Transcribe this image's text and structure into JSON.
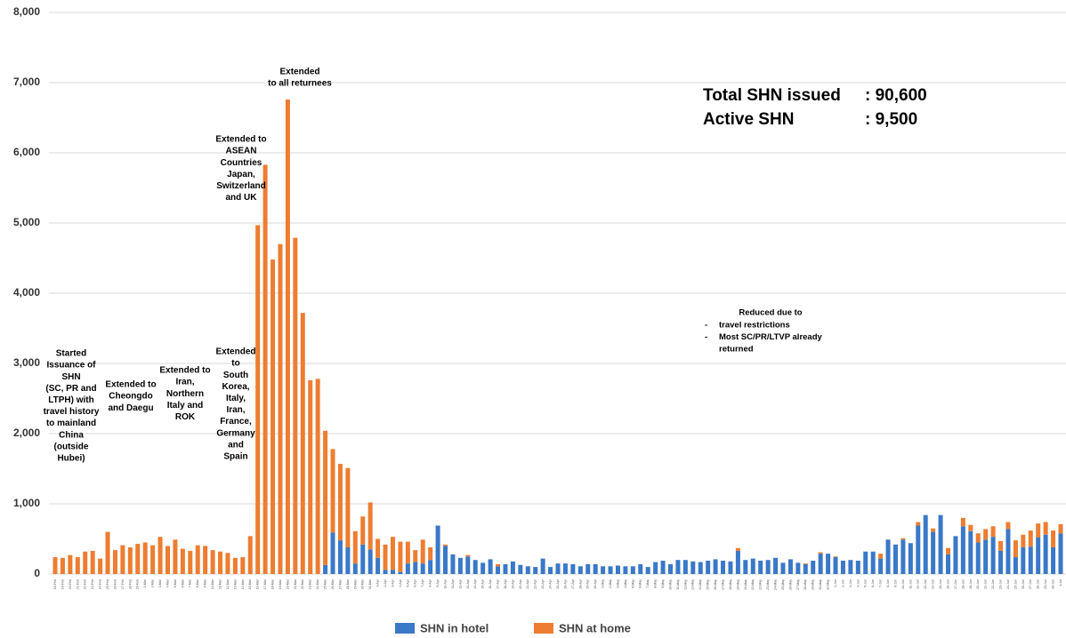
{
  "chart_data": {
    "type": "stacked_bar",
    "categories": [
      "18-Feb",
      "19-Feb",
      "20-Feb",
      "21-Feb",
      "22-Feb",
      "23-Feb",
      "24-Feb",
      "25-Feb",
      "26-Feb",
      "27-Feb",
      "28-Feb",
      "29-Feb",
      "1-Mar",
      "2-Mar",
      "3-Mar",
      "4-Mar",
      "5-Mar",
      "6-Mar",
      "7-Mar",
      "8-Mar",
      "9-Mar",
      "10-Mar",
      "11-Mar",
      "12-Mar",
      "13-Mar",
      "14-Mar",
      "15-Mar",
      "16-Mar",
      "17-Mar",
      "18-Mar",
      "19-Mar",
      "20-Mar",
      "21-Mar",
      "22-Mar",
      "23-Mar",
      "24-Mar",
      "25-Mar",
      "26-Mar",
      "27-Mar",
      "28-Mar",
      "29-Mar",
      "30-Mar",
      "31-Mar",
      "1-Apr",
      "2-Apr",
      "3-Apr",
      "4-Apr",
      "5-Apr",
      "6-Apr",
      "7-Apr",
      "8-Apr",
      "9-Apr",
      "10-Apr",
      "11-Apr",
      "12-Apr",
      "13-Apr",
      "14-Apr",
      "15-Apr",
      "16-Apr",
      "17-Apr",
      "18-Apr",
      "19-Apr",
      "20-Apr",
      "21-Apr",
      "22-Apr",
      "23-Apr",
      "24-Apr",
      "25-Apr",
      "26-Apr",
      "27-Apr",
      "28-Apr",
      "29-Apr",
      "30-Apr",
      "1-May",
      "2-May",
      "3-May",
      "4-May",
      "5-May",
      "6-May",
      "7-May",
      "8-May",
      "9-May",
      "10-May",
      "11-May",
      "12-May",
      "13-May",
      "14-May",
      "15-May",
      "16-May",
      "17-May",
      "18-May",
      "19-May",
      "20-May",
      "21-May",
      "22-May",
      "23-May",
      "24-May",
      "25-May",
      "26-May",
      "27-May",
      "28-May",
      "29-May",
      "30-May",
      "31-May",
      "1-Jun",
      "2-Jun",
      "3-Jun",
      "4-Jun",
      "5-Jun",
      "6-Jun",
      "7-Jun",
      "8-Jun",
      "9-Jun",
      "10-Jun",
      "11-Jun",
      "12-Jun",
      "13-Jun",
      "14-Jun",
      "15-Jun",
      "16-Jun",
      "17-Jun",
      "18-Jun",
      "19-Jun",
      "20-Jun",
      "21-Jun",
      "22-Jun",
      "23-Jun",
      "24-Jun",
      "25-Jun",
      "26-Jun",
      "27-Jun",
      "28-Jun",
      "29-Jun",
      "30-Jun",
      "1-Jul"
    ],
    "series": [
      {
        "name": "SHN in hotel",
        "color": "#3a78c8",
        "values": [
          0,
          0,
          0,
          0,
          0,
          0,
          0,
          0,
          0,
          0,
          0,
          0,
          0,
          0,
          0,
          0,
          0,
          0,
          0,
          0,
          0,
          0,
          0,
          0,
          0,
          0,
          0,
          0,
          0,
          0,
          0,
          0,
          0,
          0,
          0,
          0,
          130,
          590,
          480,
          380,
          150,
          420,
          350,
          230,
          60,
          60,
          30,
          150,
          170,
          150,
          200,
          690,
          400,
          280,
          230,
          250,
          200,
          160,
          210,
          110,
          140,
          180,
          130,
          110,
          100,
          220,
          100,
          150,
          150,
          140,
          110,
          140,
          140,
          110,
          110,
          120,
          110,
          110,
          140,
          100,
          170,
          190,
          140,
          200,
          200,
          180,
          170,
          190,
          210,
          190,
          180,
          330,
          200,
          220,
          190,
          200,
          230,
          160,
          210,
          160,
          140,
          190,
          290,
          290,
          240,
          190,
          200,
          190,
          320,
          320,
          220,
          490,
          420,
          490,
          440,
          690,
          840,
          600,
          840,
          280,
          540,
          680,
          610,
          450,
          490,
          530,
          330,
          640,
          240,
          380,
          390,
          520,
          560,
          380,
          580
        ]
      },
      {
        "name": "SHN at home",
        "color": "#ed7d31",
        "values": [
          240,
          230,
          270,
          240,
          320,
          330,
          220,
          600,
          340,
          410,
          380,
          430,
          450,
          410,
          530,
          400,
          490,
          360,
          330,
          410,
          400,
          340,
          320,
          300,
          230,
          240,
          540,
          4970,
          5830,
          4480,
          4700,
          6760,
          4790,
          3720,
          2760,
          2780,
          1910,
          1190,
          1090,
          1130,
          460,
          400,
          670,
          270,
          360,
          470,
          430,
          310,
          170,
          340,
          180,
          0,
          20,
          0,
          0,
          20,
          0,
          0,
          0,
          30,
          0,
          0,
          0,
          0,
          0,
          0,
          0,
          0,
          0,
          0,
          0,
          0,
          0,
          0,
          0,
          0,
          0,
          0,
          0,
          0,
          0,
          0,
          0,
          0,
          0,
          0,
          0,
          0,
          0,
          0,
          0,
          40,
          0,
          0,
          0,
          0,
          0,
          0,
          0,
          0,
          10,
          0,
          20,
          0,
          10,
          0,
          0,
          0,
          0,
          0,
          70,
          0,
          0,
          20,
          0,
          50,
          0,
          50,
          0,
          90,
          0,
          120,
          90,
          130,
          150,
          150,
          140,
          100,
          240,
          180,
          230,
          200,
          180,
          240,
          130
        ]
      }
    ],
    "ylim": [
      0,
      8000
    ],
    "yticks": [
      0,
      {
        "value": 1000,
        "label": "1,000"
      },
      {
        "value": 2000,
        "label": "2,000"
      },
      {
        "value": 3000,
        "label": "3,000"
      },
      {
        "value": 4000,
        "label": "4,000"
      },
      {
        "value": 5000,
        "label": "5,000"
      },
      {
        "value": 6000,
        "label": "6,000"
      },
      {
        "value": 7000,
        "label": "7,000"
      },
      {
        "value": 8000,
        "label": "8,000"
      }
    ],
    "grid": true,
    "annotations": [
      {
        "lines": [
          "Started",
          "Issuance of",
          "SHN",
          "(SC, PR and",
          "LTPH) with",
          "travel history",
          "to mainland",
          "China",
          "(outside",
          "Hubei)"
        ]
      },
      {
        "lines": [
          "Extended to",
          "Cheongdo",
          "and Daegu"
        ]
      },
      {
        "lines": [
          "Extended to",
          "Iran,",
          "Northern",
          "Italy and",
          "ROK"
        ]
      },
      {
        "lines": [
          "Extended",
          "to",
          "South",
          "Korea,",
          "Italy,",
          "Iran,",
          "France,",
          "Germany",
          "and",
          "Spain"
        ]
      },
      {
        "lines": [
          "Extended to",
          "ASEAN",
          "Countries",
          "Japan,",
          "Switzerland",
          "and UK"
        ]
      },
      {
        "lines": [
          "Extended",
          "to all returnees"
        ]
      }
    ],
    "stats": [
      {
        "label": "Total SHN issued",
        "value": ": 90,600"
      },
      {
        "label": "Active SHN",
        "value": ": 9,500"
      }
    ],
    "note": {
      "title": "Reduced due to",
      "bullet": "-",
      "items": [
        [
          "travel restrictions"
        ],
        [
          "Most SC/PR/LTVP already",
          "returned"
        ]
      ]
    }
  }
}
